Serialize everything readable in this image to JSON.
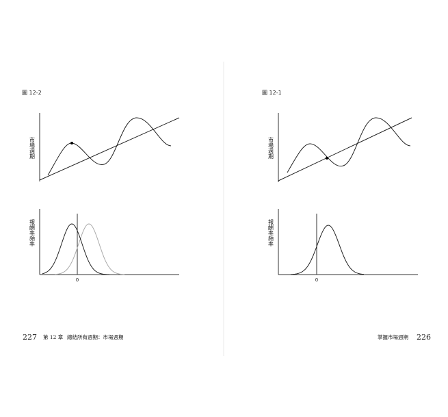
{
  "left_page": {
    "figure_label": "圖 12-2",
    "top_axis_label": "市場週期",
    "bottom_axis_label": "報酬率頻率",
    "zero_label": "0",
    "page_number": "227",
    "chapter": "第 12 章",
    "chapter_title": "總結所有週期：市場週期"
  },
  "right_page": {
    "figure_label": "圖 12-1",
    "top_axis_label": "市場週期",
    "bottom_axis_label": "報酬率頻率",
    "zero_label": "0",
    "running_head": "掌握市場週期",
    "page_number": "226"
  }
}
